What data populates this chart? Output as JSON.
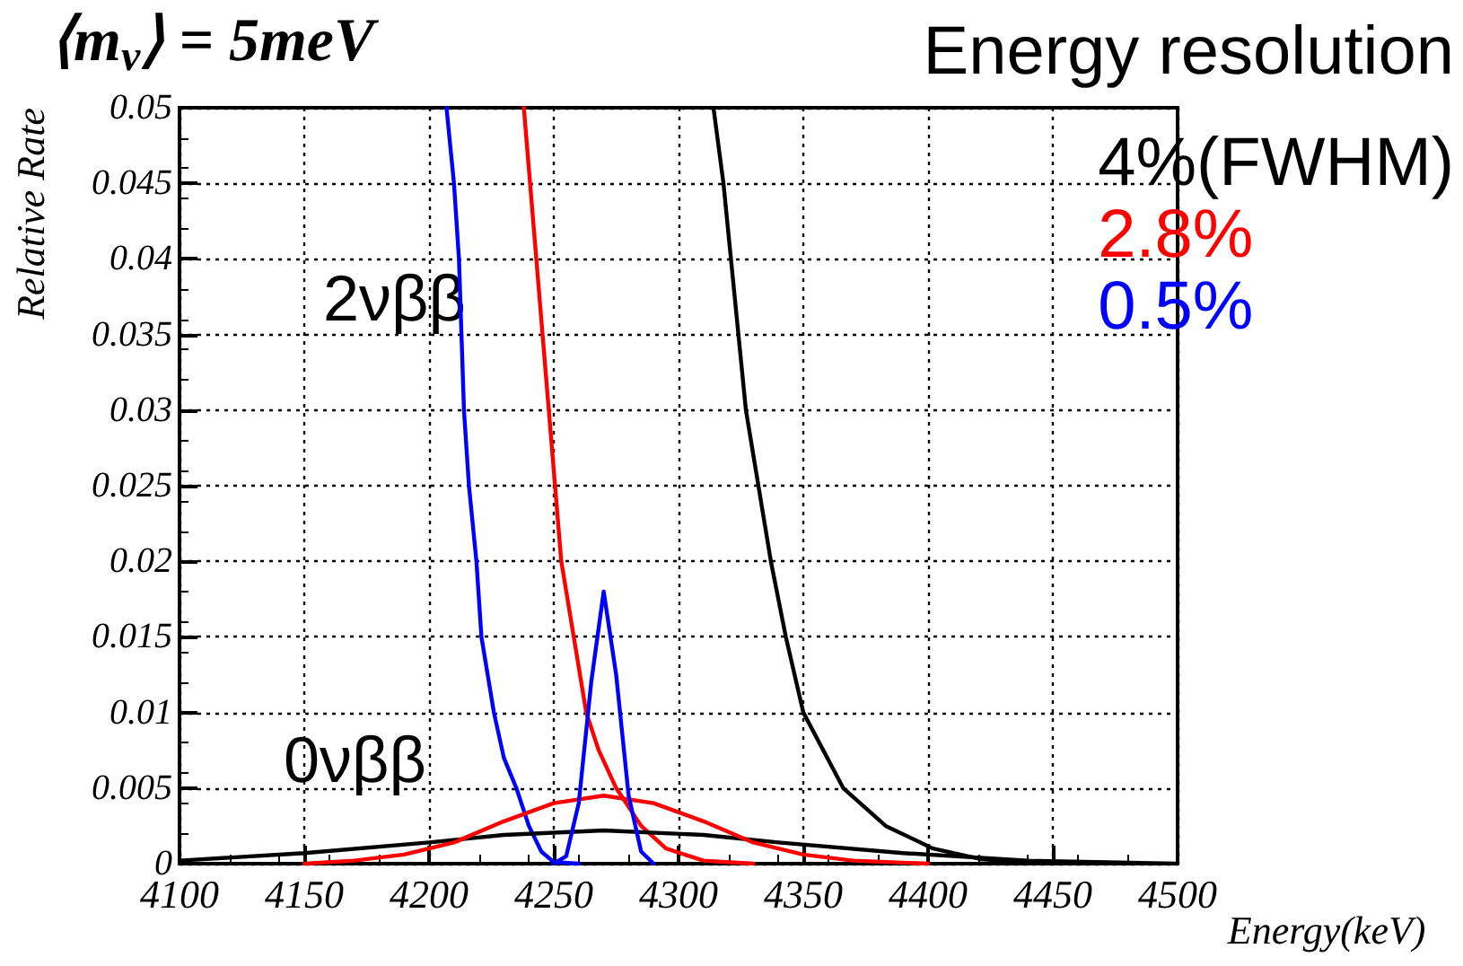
{
  "chart_data": {
    "type": "line",
    "title": "⟨m$_{ν}$⟩ = 5meV",
    "xlabel": "Energy(keV)",
    "ylabel": "Relative Rate",
    "legend_title": "Energy resolution",
    "legend": "top right",
    "grid": true,
    "line_style": "solid",
    "marker": "none",
    "annotations": [
      "2νββ",
      "0νββ"
    ],
    "xlim": [
      4100,
      4500
    ],
    "xticks": [
      4100,
      4150,
      4200,
      4250,
      4300,
      4350,
      4400,
      4450,
      4500
    ],
    "ylim": [
      0,
      0.05
    ],
    "yticks": [
      0,
      0.005,
      0.01,
      0.015,
      0.02,
      0.025,
      0.03,
      0.035,
      0.04,
      0.045,
      0.05
    ],
    "series": [
      {
        "name": "4%(FWHM)",
        "color": "#000000",
        "x": [
          4314,
          4318,
          4324,
          4327,
          4332,
          4337,
          4343,
          4350,
          4366,
          4383,
          4402,
          4421,
          4450
        ],
        "values": [
          0.05,
          0.045,
          0.035,
          0.03,
          0.025,
          0.02,
          0.015,
          0.01,
          0.005,
          0.0025,
          0.001,
          0.0003,
          0
        ]
      },
      {
        "name": "2.8%",
        "color": "#ff0000",
        "x": [
          4238,
          4243,
          4248,
          4253,
          4258,
          4263,
          4268,
          4275,
          4285,
          4295,
          4310,
          4330
        ],
        "values": [
          0.05,
          0.04,
          0.03,
          0.02,
          0.015,
          0.01,
          0.0075,
          0.005,
          0.0025,
          0.001,
          0.0002,
          0
        ]
      },
      {
        "name": "0.5%",
        "color": "#0000ff",
        "x": [
          4207,
          4210,
          4212,
          4213,
          4214,
          4216,
          4219,
          4221,
          4226,
          4230,
          4235,
          4240,
          4245,
          4250,
          4260
        ],
        "values": [
          0.05,
          0.045,
          0.04,
          0.035,
          0.03,
          0.025,
          0.02,
          0.015,
          0.01,
          0.007,
          0.005,
          0.0025,
          0.0008,
          0.0001,
          0
        ]
      },
      {
        "color": "#000000",
        "x": [
          4100,
          4150,
          4200,
          4230,
          4270,
          4310,
          4340,
          4390,
          4440,
          4500
        ],
        "values": [
          0.0002,
          0.0007,
          0.0014,
          0.0019,
          0.0022,
          0.0019,
          0.0014,
          0.0007,
          0.0002,
          0
        ]
      },
      {
        "color": "#ff0000",
        "x": [
          4150,
          4170,
          4190,
          4210,
          4230,
          4250,
          4270,
          4290,
          4310,
          4330,
          4350,
          4370,
          4400
        ],
        "values": [
          0,
          0.0002,
          0.0006,
          0.0014,
          0.0028,
          0.004,
          0.0045,
          0.004,
          0.0028,
          0.0014,
          0.0006,
          0.0002,
          0
        ]
      },
      {
        "color": "#0000ff",
        "x": [
          4250,
          4255,
          4260,
          4265,
          4270,
          4275,
          4280,
          4285,
          4290
        ],
        "values": [
          0,
          0.0005,
          0.004,
          0.012,
          0.018,
          0.0125,
          0.0045,
          0.0008,
          0
        ]
      }
    ]
  }
}
